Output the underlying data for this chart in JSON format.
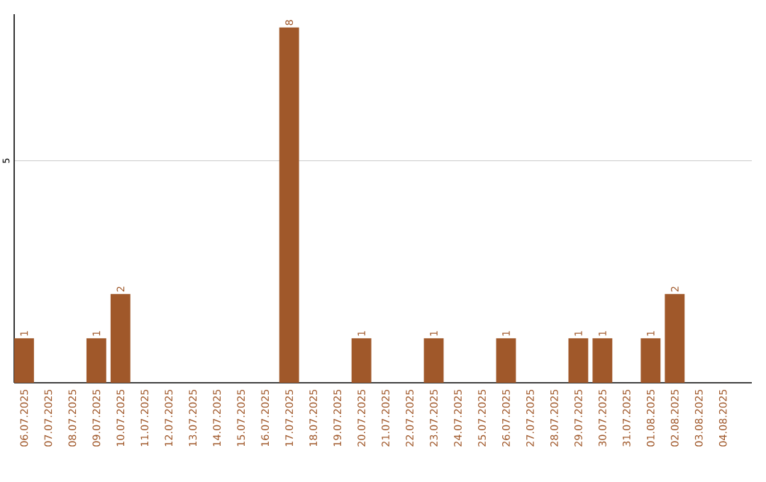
{
  "chart_data": {
    "type": "bar",
    "categories": [
      "06.07.2025",
      "07.07.2025",
      "08.07.2025",
      "09.07.2025",
      "10.07.2025",
      "11.07.2025",
      "12.07.2025",
      "13.07.2025",
      "14.07.2025",
      "15.07.2025",
      "16.07.2025",
      "17.07.2025",
      "18.07.2025",
      "19.07.2025",
      "20.07.2025",
      "21.07.2025",
      "22.07.2025",
      "23.07.2025",
      "24.07.2025",
      "25.07.2025",
      "26.07.2025",
      "27.07.2025",
      "28.07.2025",
      "29.07.2025",
      "30.07.2025",
      "31.07.2025",
      "01.08.2025",
      "02.08.2025",
      "03.08.2025",
      "04.08.2025"
    ],
    "values": [
      1,
      0,
      0,
      1,
      2,
      0,
      0,
      0,
      0,
      0,
      0,
      8,
      0,
      0,
      1,
      0,
      0,
      1,
      0,
      0,
      1,
      0,
      0,
      1,
      1,
      0,
      1,
      2,
      0,
      0
    ],
    "value_labels": [
      "1",
      null,
      null,
      "1",
      "2",
      null,
      null,
      null,
      null,
      null,
      null,
      "8",
      null,
      null,
      "1",
      null,
      null,
      "1",
      null,
      null,
      "1",
      null,
      null,
      "1",
      "1",
      null,
      "1",
      "2",
      null,
      null
    ],
    "color": "#a0582a",
    "ylim": [
      0,
      8.3
    ],
    "yticks": [
      5
    ],
    "grid": "y"
  }
}
